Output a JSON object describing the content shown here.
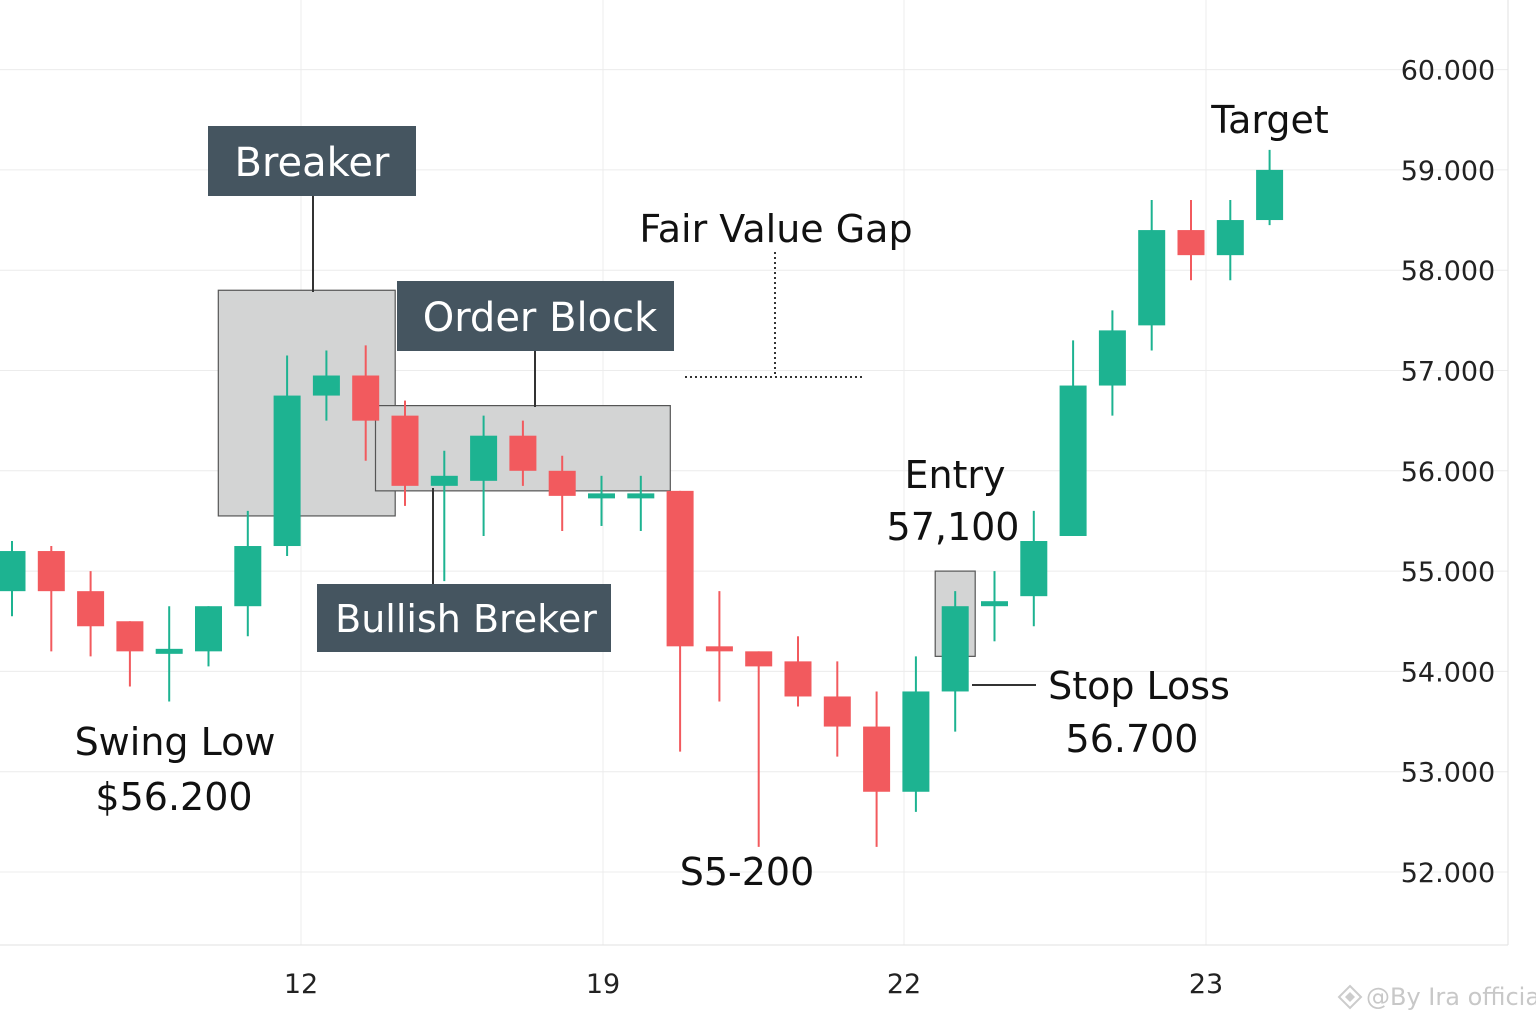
{
  "chart_data": {
    "type": "candlestick",
    "title": "",
    "xlabel": "",
    "ylabel": "",
    "ylim": [
      51.3,
      60.7
    ],
    "y_ticks": [
      "52.000",
      "53.000",
      "54.000",
      "55.000",
      "56.000",
      "57.000",
      "58.000",
      "59.000",
      "60.000"
    ],
    "x_ticks": [
      "12",
      "19",
      "22",
      "23"
    ],
    "grid": true,
    "colors": {
      "up": "#1db391",
      "down": "#f25a5e",
      "box": "#d3d4d4",
      "label_bg": "#455560"
    },
    "candles": [
      {
        "open": 54.8,
        "close": 55.2,
        "high": 55.3,
        "low": 54.55
      },
      {
        "open": 55.2,
        "close": 54.8,
        "high": 55.25,
        "low": 54.2
      },
      {
        "open": 54.8,
        "close": 54.45,
        "high": 55.0,
        "low": 54.15
      },
      {
        "open": 54.5,
        "close": 54.2,
        "high": 54.5,
        "low": 53.85
      },
      {
        "open": 54.2,
        "close": 54.2,
        "high": 54.65,
        "low": 53.7
      },
      {
        "open": 54.2,
        "close": 54.65,
        "high": 54.65,
        "low": 54.05
      },
      {
        "open": 54.65,
        "close": 55.25,
        "high": 55.6,
        "low": 54.35
      },
      {
        "open": 55.25,
        "close": 56.75,
        "high": 57.15,
        "low": 55.15
      },
      {
        "open": 56.75,
        "close": 56.95,
        "high": 57.2,
        "low": 56.5
      },
      {
        "open": 56.95,
        "close": 56.5,
        "high": 57.25,
        "low": 56.1
      },
      {
        "open": 56.55,
        "close": 55.85,
        "high": 56.7,
        "low": 55.65
      },
      {
        "open": 55.85,
        "close": 55.95,
        "high": 56.2,
        "low": 54.9
      },
      {
        "open": 55.9,
        "close": 56.35,
        "high": 56.55,
        "low": 55.35
      },
      {
        "open": 56.35,
        "close": 56.0,
        "high": 56.5,
        "low": 55.85
      },
      {
        "open": 56.0,
        "close": 55.75,
        "high": 56.15,
        "low": 55.4
      },
      {
        "open": 55.75,
        "close": 55.75,
        "high": 55.95,
        "low": 55.45
      },
      {
        "open": 55.75,
        "close": 55.75,
        "high": 55.95,
        "low": 55.4
      },
      {
        "open": 55.8,
        "close": 54.25,
        "high": 55.8,
        "low": 53.2
      },
      {
        "open": 54.25,
        "close": 54.2,
        "high": 54.8,
        "low": 53.7
      },
      {
        "open": 54.2,
        "close": 54.05,
        "high": 54.2,
        "low": 52.25
      },
      {
        "open": 54.1,
        "close": 53.75,
        "high": 54.35,
        "low": 53.65
      },
      {
        "open": 53.75,
        "close": 53.45,
        "high": 54.1,
        "low": 53.15
      },
      {
        "open": 53.45,
        "close": 52.8,
        "high": 53.8,
        "low": 52.25
      },
      {
        "open": 52.8,
        "close": 53.8,
        "high": 54.15,
        "low": 52.6
      },
      {
        "open": 53.8,
        "close": 54.65,
        "high": 54.8,
        "low": 53.4
      },
      {
        "open": 54.65,
        "close": 54.7,
        "high": 55.0,
        "low": 54.3
      },
      {
        "open": 54.75,
        "close": 55.3,
        "high": 55.6,
        "low": 54.45
      },
      {
        "open": 55.35,
        "close": 56.85,
        "high": 57.3,
        "low": 55.35
      },
      {
        "open": 56.85,
        "close": 57.4,
        "high": 57.6,
        "low": 56.55
      },
      {
        "open": 57.45,
        "close": 58.4,
        "high": 58.7,
        "low": 57.2
      },
      {
        "open": 58.4,
        "close": 58.15,
        "high": 58.7,
        "low": 57.9
      },
      {
        "open": 58.15,
        "close": 58.5,
        "high": 58.7,
        "low": 57.9
      },
      {
        "open": 58.5,
        "close": 59.0,
        "high": 59.2,
        "low": 58.45
      }
    ],
    "zones": [
      {
        "name": "breaker-zone",
        "from_index": 6,
        "to_index": 9,
        "low": 55.55,
        "high": 57.8
      },
      {
        "name": "order-block-zone",
        "from_index": 10,
        "to_index": 16,
        "low": 55.8,
        "high": 56.65
      },
      {
        "name": "entry-zone",
        "from_index": 24,
        "to_index": 24,
        "low": 54.15,
        "high": 55.0
      }
    ],
    "annotations": {
      "breaker": "Breaker",
      "order_block": "Order Block",
      "bullish_breaker": "Bullish Breker",
      "fair_value_gap": "Fair Value Gap",
      "entry_title": "Entry",
      "entry_value": "57,100",
      "stop_loss_title": "Stop Loss",
      "stop_loss_value": "56.700",
      "target": "Target",
      "swing_low_title": "Swing Low",
      "swing_low_value": "$56.200",
      "s5_label": "S5-200"
    },
    "watermark": "@By Ira official"
  }
}
